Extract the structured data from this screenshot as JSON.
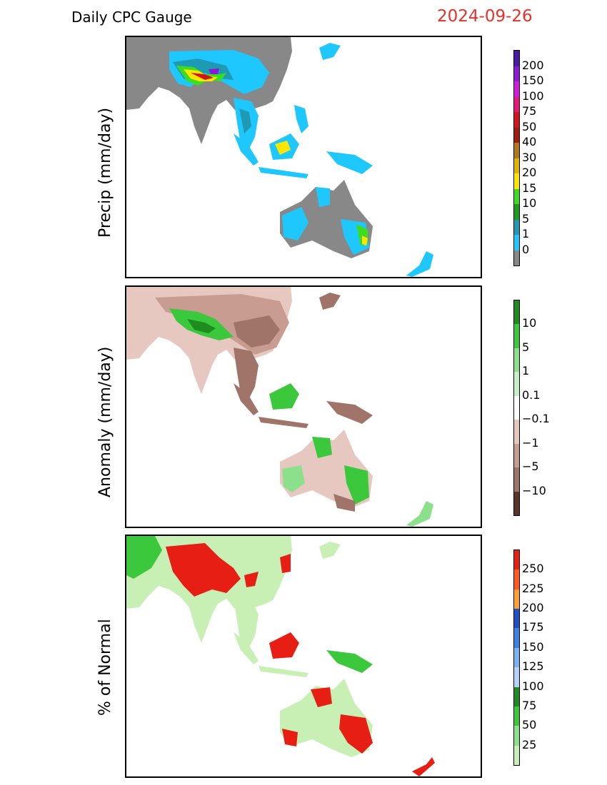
{
  "header": {
    "title": "Daily CPC Gauge",
    "date": "2024-09-26"
  },
  "panels": [
    {
      "id": "precip",
      "ylabel": "Precip (mm/day)",
      "colorbar": {
        "labels": [
          "200",
          "150",
          "100",
          "75",
          "50",
          "40",
          "30",
          "20",
          "15",
          "10",
          "5",
          "1",
          "0"
        ],
        "colors": [
          "#4a1aa8",
          "#8a1ad8",
          "#d21adc",
          "#e8177c",
          "#d2151c",
          "#a01a0e",
          "#b4781c",
          "#e0b400",
          "#ffe600",
          "#3cdc1e",
          "#1e9c22",
          "#1e9ab4",
          "#1ec8ff",
          "#888888"
        ]
      }
    },
    {
      "id": "anomaly",
      "ylabel": "Anomaly (mm/day)",
      "colorbar": {
        "labels": [
          "10",
          "5",
          "1",
          "0.1",
          "−0.1",
          "−1",
          "−5",
          "−10"
        ],
        "colors": [
          "#1e8c1e",
          "#3cc83c",
          "#8ce08c",
          "#c8f0c8",
          "#ffffff",
          "#e6c8c0",
          "#c89c90",
          "#a07468",
          "#5a3428"
        ]
      }
    },
    {
      "id": "percent",
      "ylabel": "% of Normal",
      "colorbar": {
        "labels": [
          "250",
          "225",
          "200",
          "175",
          "150",
          "125",
          "100",
          "75",
          "50",
          "25"
        ],
        "colors": [
          "#e61e14",
          "#ff5a1e",
          "#ffa032",
          "#1e50c8",
          "#3c82e6",
          "#78b4f0",
          "#b4d2fa",
          "#1e8c1e",
          "#3cc83c",
          "#8ce08c",
          "#c8f0b4"
        ]
      }
    }
  ]
}
